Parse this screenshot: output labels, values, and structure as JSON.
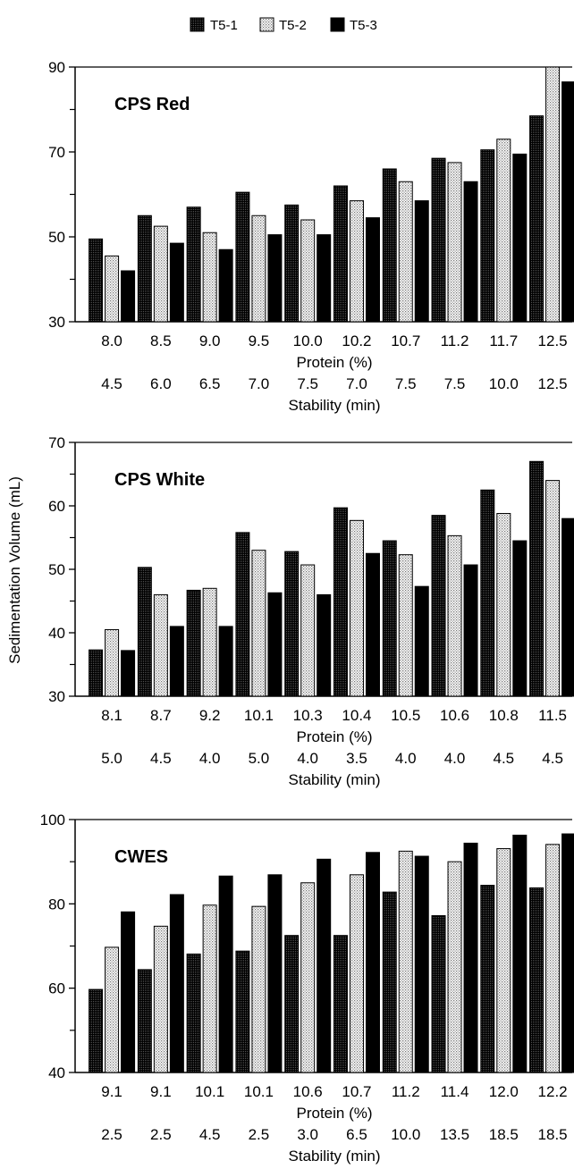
{
  "legend": [
    "T5-1",
    "T5-2",
    "T5-3"
  ],
  "ylabel": "Sedimentation Volume (mL)",
  "colors": {
    "T5-1": "#111111",
    "T5-2": "#e0e0e0",
    "T5-3": "#000000"
  },
  "chart_data": [
    {
      "type": "bar",
      "title": "CPS Red",
      "xlabel": "Protein (%)",
      "categories": [
        "8.0",
        "8.5",
        "9.0",
        "9.5",
        "10.0",
        "10.2",
        "10.7",
        "11.2",
        "11.7",
        "12.5"
      ],
      "secondary_label": "Stability (min)",
      "secondary_categories": [
        "4.5",
        "6.0",
        "6.5",
        "7.0",
        "7.5",
        "7.0",
        "7.5",
        "7.5",
        "10.0",
        "12.5"
      ],
      "ylim": [
        30,
        90
      ],
      "yticks": [
        "30",
        "50",
        "70",
        "90"
      ],
      "series": [
        {
          "name": "T5-1",
          "values": [
            49.5,
            55,
            57,
            60.5,
            57.5,
            62,
            66,
            68.5,
            70.5,
            78.5
          ]
        },
        {
          "name": "T5-2",
          "values": [
            45.5,
            52.5,
            51,
            55,
            54,
            58.5,
            63,
            67.5,
            73,
            90
          ]
        },
        {
          "name": "T5-3",
          "values": [
            42,
            48.5,
            47,
            50.5,
            50.5,
            54.5,
            58.5,
            63,
            69.5,
            86.5
          ]
        }
      ]
    },
    {
      "type": "bar",
      "title": "CPS White",
      "xlabel": "Protein (%)",
      "categories": [
        "8.1",
        "8.7",
        "9.2",
        "10.1",
        "10.3",
        "10.4",
        "10.5",
        "10.6",
        "10.8",
        "11.5"
      ],
      "secondary_label": "Stability (min)",
      "secondary_categories": [
        "5.0",
        "4.5",
        "4.0",
        "5.0",
        "4.0",
        "3.5",
        "4.0",
        "4.0",
        "4.5",
        "4.5"
      ],
      "ylim": [
        30,
        70
      ],
      "yticks": [
        "30",
        "40",
        "50",
        "60",
        "70"
      ],
      "series": [
        {
          "name": "T5-1",
          "values": [
            37.3,
            50.3,
            46.7,
            55.8,
            52.8,
            59.7,
            54.5,
            58.5,
            62.5,
            67
          ]
        },
        {
          "name": "T5-2",
          "values": [
            40.5,
            46,
            47,
            53,
            50.7,
            57.7,
            52.3,
            55.3,
            58.8,
            64
          ]
        },
        {
          "name": "T5-3",
          "values": [
            37.2,
            41,
            41,
            46.3,
            46,
            52.5,
            47.3,
            50.7,
            54.5,
            58
          ]
        }
      ]
    },
    {
      "type": "bar",
      "title": "CWES",
      "xlabel": "Protein (%)",
      "categories": [
        "9.1",
        "9.1",
        "10.1",
        "10.1",
        "10.6",
        "10.7",
        "11.2",
        "11.4",
        "12.0",
        "12.2"
      ],
      "secondary_label": "Stability (min)",
      "secondary_categories": [
        "2.5",
        "2.5",
        "4.5",
        "2.5",
        "3.0",
        "6.5",
        "10.0",
        "13.5",
        "18.5",
        "18.5"
      ],
      "ylim": [
        40,
        100
      ],
      "yticks": [
        "40",
        "60",
        "80",
        "100"
      ],
      "series": [
        {
          "name": "T5-1",
          "values": [
            59.7,
            64.4,
            68.1,
            68.8,
            72.5,
            72.5,
            82.8,
            77.2,
            84.4,
            83.8
          ]
        },
        {
          "name": "T5-2",
          "values": [
            69.7,
            74.7,
            79.7,
            79.4,
            85,
            86.9,
            92.5,
            90,
            93.1,
            94.1
          ]
        },
        {
          "name": "T5-3",
          "values": [
            78.1,
            82.2,
            86.6,
            86.9,
            90.6,
            92.2,
            91.3,
            94.4,
            96.3,
            96.6
          ]
        }
      ]
    }
  ]
}
